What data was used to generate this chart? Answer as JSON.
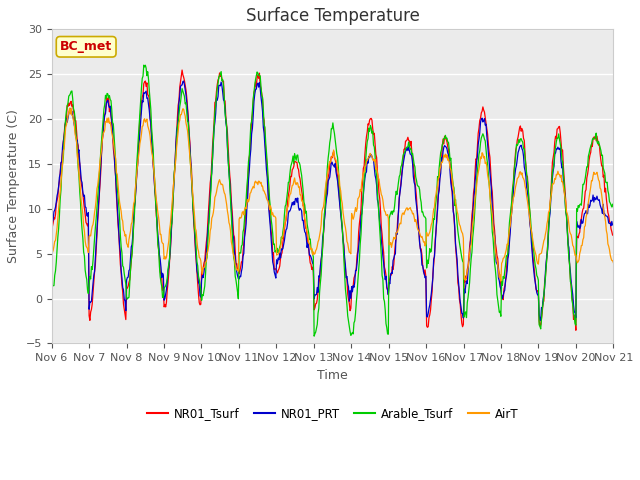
{
  "title": "Surface Temperature",
  "ylabel": "Surface Temperature (C)",
  "xlabel": "Time",
  "ylim": [
    -5,
    30
  ],
  "yticks": [
    -5,
    0,
    5,
    10,
    15,
    20,
    25,
    30
  ],
  "xtick_labels": [
    "Nov 6",
    "Nov 7",
    "Nov 8",
    "Nov 9",
    "Nov 10",
    "Nov 11",
    "Nov 12",
    "Nov 13",
    "Nov 14",
    "Nov 15",
    "Nov 16",
    "Nov 17",
    "Nov 18",
    "Nov 19",
    "Nov 20",
    "Nov 21"
  ],
  "annotation_text": "BC_met",
  "annotation_bg": "#ffffcc",
  "annotation_border": "#ccaa00",
  "annotation_text_color": "#cc0000",
  "series_colors": [
    "#ff0000",
    "#0000cc",
    "#00cc00",
    "#ff9900"
  ],
  "series_labels": [
    "NR01_Tsurf",
    "NR01_PRT",
    "Arable_Tsurf",
    "AirT"
  ],
  "background_color": "#ffffff",
  "plot_bg_color": "#ebebeb",
  "grid_color": "#ffffff",
  "title_fontsize": 12,
  "label_fontsize": 9,
  "tick_fontsize": 8
}
